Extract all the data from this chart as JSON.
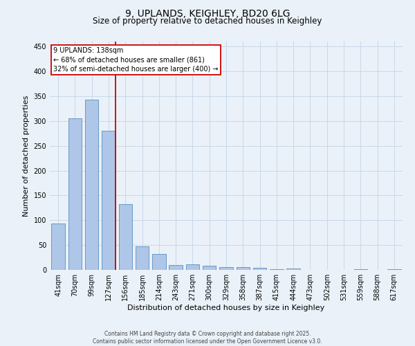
{
  "title_line1": "9, UPLANDS, KEIGHLEY, BD20 6LG",
  "title_line2": "Size of property relative to detached houses in Keighley",
  "xlabel": "Distribution of detached houses by size in Keighley",
  "ylabel": "Number of detached properties",
  "categories": [
    "41sqm",
    "70sqm",
    "99sqm",
    "127sqm",
    "156sqm",
    "185sqm",
    "214sqm",
    "243sqm",
    "271sqm",
    "300sqm",
    "329sqm",
    "358sqm",
    "387sqm",
    "415sqm",
    "444sqm",
    "473sqm",
    "502sqm",
    "531sqm",
    "559sqm",
    "588sqm",
    "617sqm"
  ],
  "values": [
    93,
    305,
    343,
    280,
    133,
    47,
    32,
    10,
    11,
    8,
    6,
    6,
    4,
    1,
    3,
    0,
    0,
    0,
    2,
    0,
    2
  ],
  "bar_color": "#aec6e8",
  "bar_edge_color": "#5a8fc0",
  "vline_x_index": 3,
  "vline_color": "#cc0000",
  "annotation_text": "9 UPLANDS: 138sqm\n← 68% of detached houses are smaller (861)\n32% of semi-detached houses are larger (400) →",
  "annotation_box_color": "#ffffff",
  "annotation_box_edge": "#cc0000",
  "ylim": [
    0,
    460
  ],
  "yticks": [
    0,
    50,
    100,
    150,
    200,
    250,
    300,
    350,
    400,
    450
  ],
  "grid_color": "#c8d8e8",
  "background_color": "#eaf1f8",
  "footer_line1": "Contains HM Land Registry data © Crown copyright and database right 2025.",
  "footer_line2": "Contains public sector information licensed under the Open Government Licence v3.0.",
  "title_fontsize": 10,
  "subtitle_fontsize": 8.5,
  "axis_label_fontsize": 8,
  "tick_fontsize": 7,
  "annotation_fontsize": 7,
  "footer_fontsize": 5.5
}
